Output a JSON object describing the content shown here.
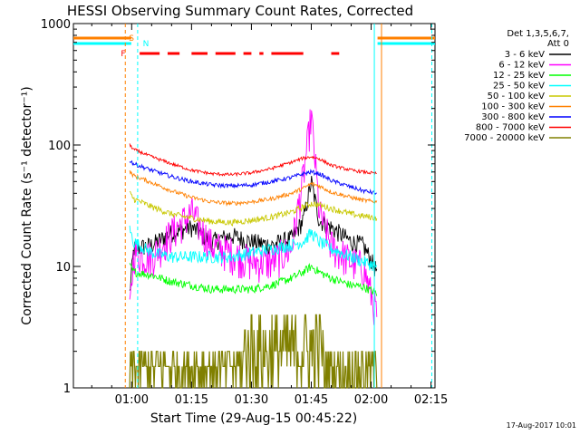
{
  "chart_data": {
    "type": "line",
    "title": "HESSI Observing Summary Count Rates, Corrected",
    "xlabel": "Start Time (29-Aug-15 00:45:22)",
    "ylabel": "Corrected Count Rate (s⁻¹ detector⁻¹)",
    "yscale": "log",
    "ylim": [
      1,
      1000
    ],
    "xlim_minutes": [
      45.4,
      136
    ],
    "x_ticks": [
      {
        "minute": 60,
        "label": "01:00"
      },
      {
        "minute": 75,
        "label": "01:15"
      },
      {
        "minute": 90,
        "label": "01:30"
      },
      {
        "minute": 105,
        "label": "01:45"
      },
      {
        "minute": 120,
        "label": "02:00"
      },
      {
        "minute": 135,
        "label": "02:15"
      }
    ],
    "y_ticks": [
      {
        "value": 1,
        "label": "1"
      },
      {
        "value": 10,
        "label": "10"
      },
      {
        "value": 100,
        "label": "100"
      },
      {
        "value": 1000,
        "label": "1000"
      }
    ],
    "legend": {
      "placement": "right",
      "header": [
        "Det 1,3,5,6,7,",
        "Att 0"
      ]
    },
    "footer": "17-Aug-2017 10:01",
    "x_minutes": [
      59.5,
      60.5,
      65,
      70,
      75,
      80,
      85,
      90,
      95,
      100,
      103,
      105,
      107,
      110,
      115,
      118,
      121.5
    ],
    "series": [
      {
        "name": "3 - 6 keV",
        "color": "#000000",
        "values": [
          6,
          14,
          15,
          19,
          21,
          16,
          18,
          16,
          15,
          17,
          24,
          50,
          24,
          21,
          16,
          15,
          9
        ]
      },
      {
        "name": "6 - 12 keV",
        "color": "#ff00ff",
        "values": [
          4,
          13,
          12,
          19,
          28,
          15,
          13,
          11,
          11,
          14,
          55,
          180,
          28,
          15,
          11,
          10,
          4
        ]
      },
      {
        "name": "12 - 25 keV",
        "color": "#00ff00",
        "values": [
          10,
          9,
          8.5,
          7.5,
          7,
          6.5,
          6.5,
          6.5,
          7,
          8,
          9,
          10,
          9,
          8,
          7,
          6.8,
          6
        ]
      },
      {
        "name": "25 - 50 keV",
        "color": "#00ffff",
        "values": [
          20,
          16,
          13,
          12,
          12,
          12,
          12,
          13,
          14,
          15,
          16,
          19,
          16,
          14,
          12,
          11,
          10
        ]
      },
      {
        "name": "50 - 100 keV",
        "color": "#c8c800",
        "values": [
          40,
          36,
          31,
          27,
          25,
          23.5,
          23,
          24,
          25.5,
          28,
          31,
          33,
          32,
          30,
          27,
          26,
          25
        ]
      },
      {
        "name": "100 - 300 keV",
        "color": "#ff8000",
        "values": [
          60,
          56,
          49,
          42,
          37,
          34,
          33,
          34,
          36,
          40,
          44,
          48,
          46,
          41,
          37,
          35,
          34
        ]
      },
      {
        "name": "300 - 800 keV",
        "color": "#0000ff",
        "values": [
          75,
          70,
          62,
          55,
          50,
          47,
          46,
          47,
          50,
          54,
          58,
          60,
          58,
          51,
          45,
          42,
          40
        ]
      },
      {
        "name": "800 - 7000 keV",
        "color": "#ff0000",
        "values": [
          100,
          92,
          80,
          70,
          62,
          58,
          57,
          59,
          64,
          72,
          78,
          80,
          77,
          68,
          62,
          60,
          58
        ]
      },
      {
        "name": "7000 - 20000 keV",
        "color": "#808000",
        "values": [
          1.5,
          1.5,
          1.5,
          1.4,
          1.4,
          1.4,
          1.4,
          1.4,
          1.5,
          1.6,
          1.7,
          1.7,
          1.7,
          1.6,
          1.5,
          1.4,
          1.2
        ]
      }
    ],
    "markers": [
      {
        "label": "S",
        "color": "#ff8000"
      },
      {
        "label": "N",
        "color": "#00ffff"
      },
      {
        "label": "F",
        "color": "#ff0000"
      }
    ],
    "flare_segments_minutes": [
      [
        62,
        67
      ],
      [
        69,
        72
      ],
      [
        75,
        79
      ],
      [
        81,
        86
      ],
      [
        88,
        90
      ],
      [
        92,
        93
      ],
      [
        95,
        103
      ],
      [
        110,
        112
      ]
    ],
    "night_periods_minutes": [
      [
        45.4,
        59.9
      ],
      [
        121.6,
        136
      ]
    ],
    "saa_periods_minutes": [
      [
        45.4,
        59.9
      ],
      [
        121.6,
        136
      ]
    ]
  }
}
